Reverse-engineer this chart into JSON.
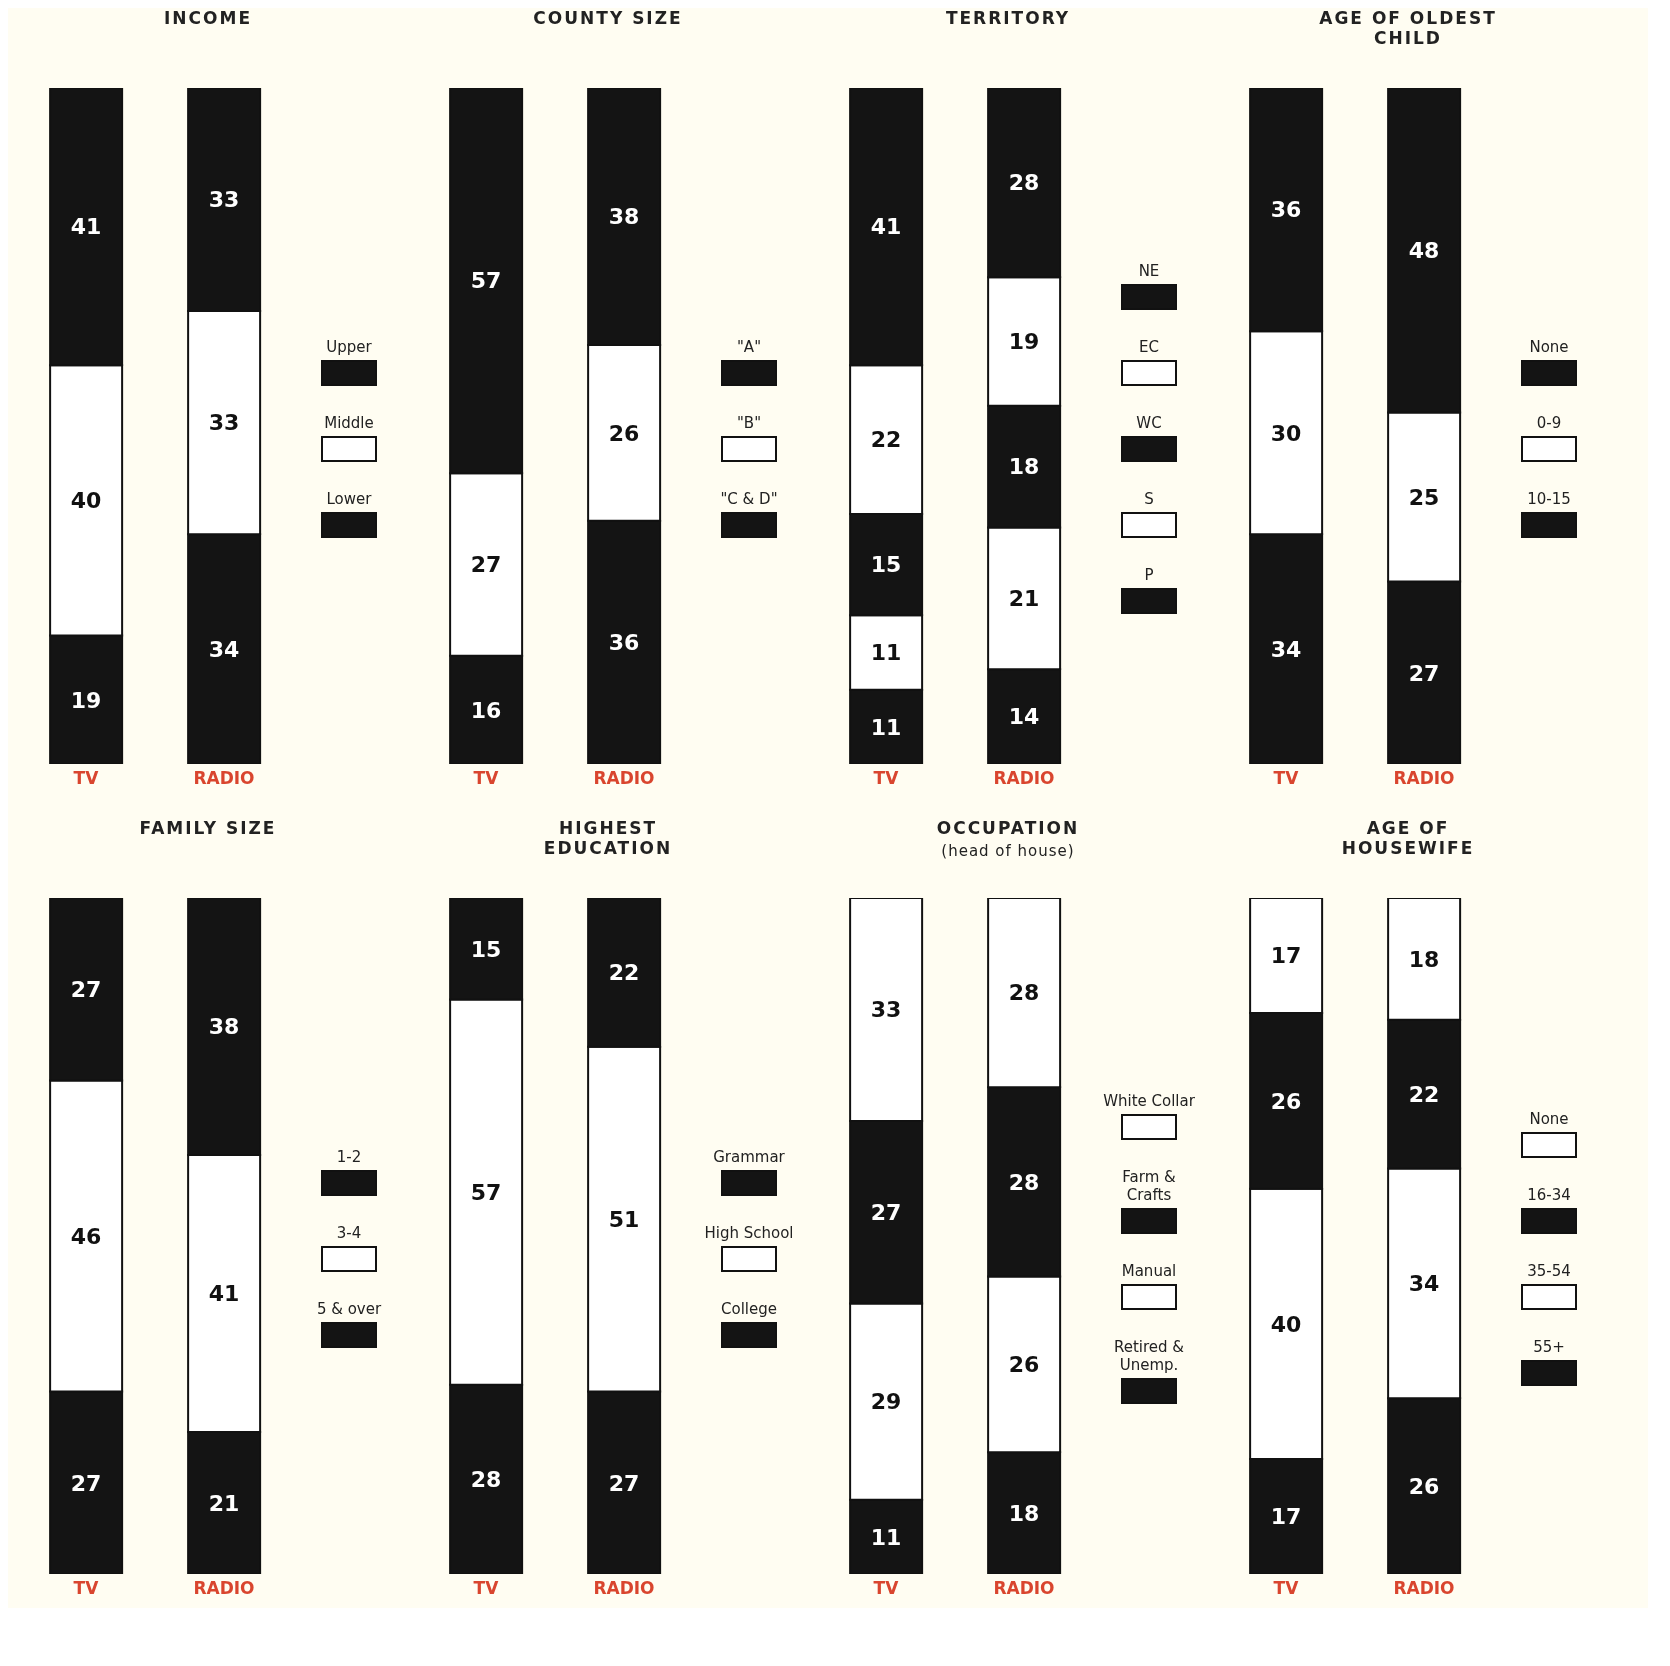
{
  "chart_data": [
    {
      "type": "bar",
      "title": "INCOME",
      "categories": [
        "TV",
        "RADIO"
      ],
      "stacked": true,
      "data_labels": true,
      "legend": "right",
      "series": [
        {
          "name": "Lower",
          "color": "#141414",
          "values": [
            19,
            34
          ]
        },
        {
          "name": "Middle",
          "color": "#ffffff",
          "values": [
            40,
            33
          ]
        },
        {
          "name": "Upper",
          "color": "#141414",
          "values": [
            41,
            33
          ]
        }
      ]
    },
    {
      "type": "bar",
      "title": "COUNTY SIZE",
      "categories": [
        "TV",
        "RADIO"
      ],
      "stacked": true,
      "data_labels": true,
      "legend": "right",
      "series": [
        {
          "name": "\"C & D\"",
          "color": "#141414",
          "values": [
            16,
            36
          ]
        },
        {
          "name": "\"B\"",
          "color": "#ffffff",
          "values": [
            27,
            26
          ]
        },
        {
          "name": "\"A\"",
          "color": "#141414",
          "values": [
            57,
            38
          ]
        }
      ]
    },
    {
      "type": "bar",
      "title": "TERRITORY",
      "categories": [
        "TV",
        "RADIO"
      ],
      "stacked": true,
      "data_labels": true,
      "legend": "right",
      "series": [
        {
          "name": "P",
          "color": "#141414",
          "values": [
            11,
            14
          ]
        },
        {
          "name": "S",
          "color": "#ffffff",
          "values": [
            11,
            21
          ]
        },
        {
          "name": "WC",
          "color": "#141414",
          "values": [
            15,
            18
          ]
        },
        {
          "name": "EC",
          "color": "#ffffff",
          "values": [
            22,
            19
          ]
        },
        {
          "name": "NE",
          "color": "#141414",
          "values": [
            41,
            28
          ]
        }
      ]
    },
    {
      "type": "bar",
      "title": "AGE OF OLDEST CHILD",
      "categories": [
        "TV",
        "RADIO"
      ],
      "stacked": true,
      "data_labels": true,
      "legend": "right",
      "series": [
        {
          "name": "10-15",
          "color": "#141414",
          "values": [
            34,
            27
          ]
        },
        {
          "name": "0-9",
          "color": "#ffffff",
          "values": [
            30,
            25
          ]
        },
        {
          "name": "None",
          "color": "#141414",
          "values": [
            36,
            48
          ]
        }
      ]
    },
    {
      "type": "bar",
      "title": "FAMILY SIZE",
      "categories": [
        "TV",
        "RADIO"
      ],
      "stacked": true,
      "data_labels": true,
      "legend": "right",
      "series": [
        {
          "name": "5 & over",
          "color": "#141414",
          "values": [
            27,
            21
          ]
        },
        {
          "name": "3-4",
          "color": "#ffffff",
          "values": [
            46,
            41
          ]
        },
        {
          "name": "1-2",
          "color": "#141414",
          "values": [
            27,
            38
          ]
        }
      ]
    },
    {
      "type": "bar",
      "title": "HIGHEST EDUCATION",
      "categories": [
        "TV",
        "RADIO"
      ],
      "stacked": true,
      "data_labels": true,
      "legend": "right",
      "series": [
        {
          "name": "College",
          "color": "#141414",
          "values": [
            28,
            27
          ]
        },
        {
          "name": "High School",
          "color": "#ffffff",
          "values": [
            57,
            51
          ]
        },
        {
          "name": "Grammar",
          "color": "#141414",
          "values": [
            15,
            22
          ]
        }
      ]
    },
    {
      "type": "bar",
      "title": "OCCUPATION",
      "subtitle": "(head of house)",
      "categories": [
        "TV",
        "RADIO"
      ],
      "stacked": true,
      "data_labels": true,
      "legend": "right",
      "series": [
        {
          "name": "Retired & Unemp.",
          "color": "#141414",
          "values": [
            11,
            18
          ]
        },
        {
          "name": "Manual",
          "color": "#ffffff",
          "values": [
            29,
            26
          ]
        },
        {
          "name": "Farm & Crafts",
          "color": "#141414",
          "values": [
            27,
            28
          ]
        },
        {
          "name": "White Collar",
          "color": "#ffffff",
          "values": [
            33,
            28
          ]
        }
      ]
    },
    {
      "type": "bar",
      "title": "AGE OF HOUSEWIFE",
      "categories": [
        "TV",
        "RADIO"
      ],
      "stacked": true,
      "data_labels": true,
      "legend": "right",
      "series": [
        {
          "name": "55+",
          "color": "#141414",
          "values": [
            17,
            26
          ]
        },
        {
          "name": "35-54",
          "color": "#ffffff",
          "values": [
            40,
            34
          ]
        },
        {
          "name": "16-34",
          "color": "#141414",
          "values": [
            26,
            22
          ]
        },
        {
          "name": "None",
          "color": "#ffffff",
          "values": [
            17,
            18
          ]
        }
      ]
    }
  ]
}
